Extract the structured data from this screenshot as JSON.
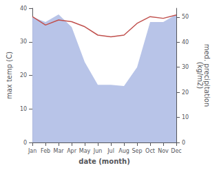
{
  "chart_data": {
    "type": "line",
    "xlabel": "date (month)",
    "ylabel": "max temp (C)",
    "y2label": "med. precipitation\n(kg/m2)",
    "categories": [
      "Jan",
      "Feb",
      "Mar",
      "Apr",
      "May",
      "Jun",
      "Jul",
      "Aug",
      "Sep",
      "Oct",
      "Nov",
      "Dec"
    ],
    "series": [
      {
        "type": "area",
        "axis": "y2",
        "color": "#b8c4e8",
        "values": [
          50.0,
          48.0,
          51.0,
          46.0,
          32.0,
          23.0,
          23.0,
          22.5,
          30.0,
          48.0,
          48.0,
          51.0
        ]
      },
      {
        "type": "line",
        "axis": "y",
        "color": "#c0504d",
        "values": [
          37.5,
          35.0,
          36.5,
          36.0,
          34.5,
          32.0,
          31.5,
          32.0,
          35.5,
          37.5,
          37.0,
          38.0
        ]
      }
    ],
    "ylim": [
      0,
      40
    ],
    "yticks": [
      0,
      10,
      20,
      30,
      40
    ],
    "y2lim": [
      0,
      53.5
    ],
    "y2ticks": [
      0,
      10,
      20,
      30,
      40,
      50
    ],
    "grid": false
  }
}
